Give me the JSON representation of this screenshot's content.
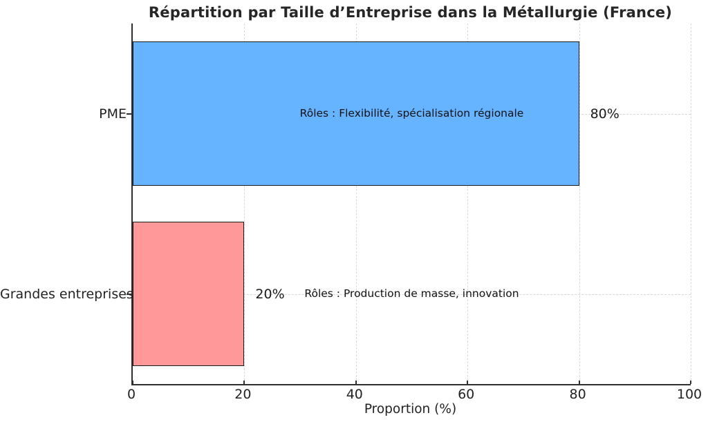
{
  "chart_data": {
    "type": "bar",
    "orientation": "horizontal",
    "title": "Répartition par Taille d’Entreprise dans la Métallurgie (France)",
    "xlabel": "Proportion (%)",
    "ylabel": "",
    "categories": [
      "PME",
      "Grandes entreprises"
    ],
    "values": [
      80,
      20
    ],
    "value_labels": [
      "80%",
      "20%"
    ],
    "bar_colors": [
      "#66b3ff",
      "#ff9999"
    ],
    "bar_edge_color": "#1a1a1a",
    "annotations": [
      {
        "text": "Rôles : Flexibilité, spécialisation régionale",
        "x": 50,
        "row": 0
      },
      {
        "text": "Rôles : Production de masse, innovation",
        "x": 50,
        "row": 1
      }
    ],
    "xticks": [
      0,
      20,
      40,
      60,
      80,
      100
    ],
    "xtick_labels": [
      "0",
      "20",
      "40",
      "60",
      "80",
      "100"
    ],
    "xlim": [
      0,
      100
    ],
    "grid": true,
    "grid_style": "dashed",
    "grid_color": "#d8d8d8",
    "legend": "none",
    "background_color": "#ffffff"
  }
}
